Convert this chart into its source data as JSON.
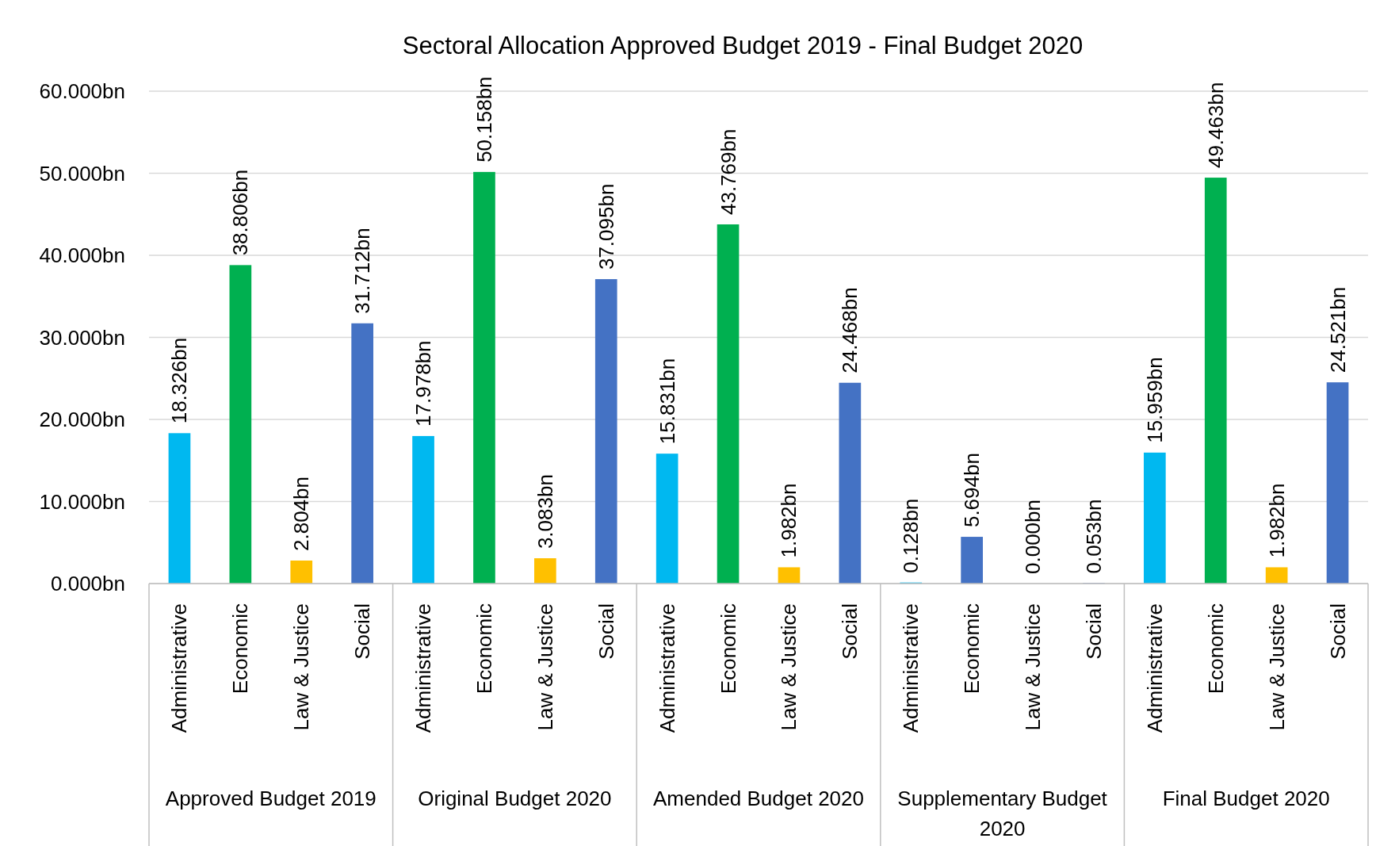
{
  "chart_data": {
    "type": "bar",
    "title": "Sectoral Allocation Approved Budget 2019 - Final Budget 2020",
    "categories": [
      "Administrative",
      "Economic",
      "Law & Justice",
      "Social",
      "Administrative",
      "Economic",
      "Law & Justice",
      "Social",
      "Administrative",
      "Economic",
      "Law & Justice",
      "Social",
      "Administrative",
      "Economic",
      "Law & Justice",
      "Social",
      "Administrative",
      "Economic",
      "Law & Justice",
      "Social"
    ],
    "values": [
      18.326,
      38.806,
      2.804,
      31.712,
      17.978,
      50.158,
      3.083,
      37.095,
      15.831,
      43.769,
      1.982,
      24.468,
      0.128,
      5.694,
      0.0,
      0.053,
      15.959,
      49.463,
      1.982,
      24.521
    ],
    "colors": [
      "#00b8f0",
      "#00b050",
      "#ffc000",
      "#4472c4",
      "#00b8f0",
      "#00b050",
      "#ffc000",
      "#4472c4",
      "#00b8f0",
      "#00b050",
      "#ffc000",
      "#4472c4",
      "#00b8f0",
      "#4472c4",
      "#ffc000",
      "#4472c4",
      "#00b8f0",
      "#00b050",
      "#ffc000",
      "#4472c4"
    ],
    "value_labels": [
      "18.326bn",
      "38.806bn",
      "2.804bn",
      "31.712bn",
      "17.978bn",
      "50.158bn",
      "3.083bn",
      "37.095bn",
      "15.831bn",
      "43.769bn",
      "1.982bn",
      "24.468bn",
      "0.128bn",
      "5.694bn",
      "0.000bn",
      "0.053bn",
      "15.959bn",
      "49.463bn",
      "1.982bn",
      "24.521bn"
    ],
    "ylim": [
      0,
      60
    ],
    "yticks": [
      {
        "value": 0,
        "label": "0.000bn"
      },
      {
        "value": 10,
        "label": "10.000bn"
      },
      {
        "value": 20,
        "label": "20.000bn"
      },
      {
        "value": 30,
        "label": "30.000bn"
      },
      {
        "value": 40,
        "label": "40.000bn"
      },
      {
        "value": 50,
        "label": "50.000bn"
      },
      {
        "value": 60,
        "label": "60.000bn"
      }
    ],
    "grid": "y",
    "annotations": [
      "Approved Budget 2019",
      "Original Budget 2020",
      "Amended Budget 2020",
      "Supplementary Budget 2020",
      "Final Budget 2020"
    ]
  }
}
